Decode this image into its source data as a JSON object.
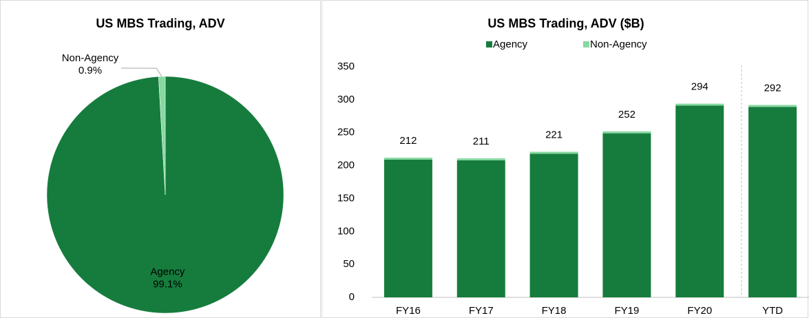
{
  "chart_data": [
    {
      "type": "pie",
      "title": "US MBS Trading, ADV",
      "categories": [
        "Agency",
        "Non-Agency"
      ],
      "values": [
        99.1,
        0.9
      ],
      "value_labels": [
        "99.1%",
        "0.9%"
      ],
      "colors": [
        "#167c3d",
        "#86d9a0"
      ]
    },
    {
      "type": "stacked_bar",
      "title": "US MBS Trading, ADV ($B)",
      "categories": [
        "FY16",
        "FY17",
        "FY18",
        "FY19",
        "FY20",
        "YTD"
      ],
      "series": [
        {
          "name": "Agency",
          "color": "#167c3d",
          "values": [
            209,
            208,
            218,
            249,
            291,
            289
          ]
        },
        {
          "name": "Non-Agency",
          "color": "#86d9a0",
          "values": [
            3,
            3,
            3,
            3,
            3,
            3
          ]
        }
      ],
      "totals": [
        212,
        211,
        221,
        252,
        294,
        292
      ],
      "ylim": [
        0,
        350
      ],
      "yticks": [
        0,
        50,
        100,
        150,
        200,
        250,
        300,
        350
      ],
      "grid": false,
      "legend": "top"
    }
  ]
}
